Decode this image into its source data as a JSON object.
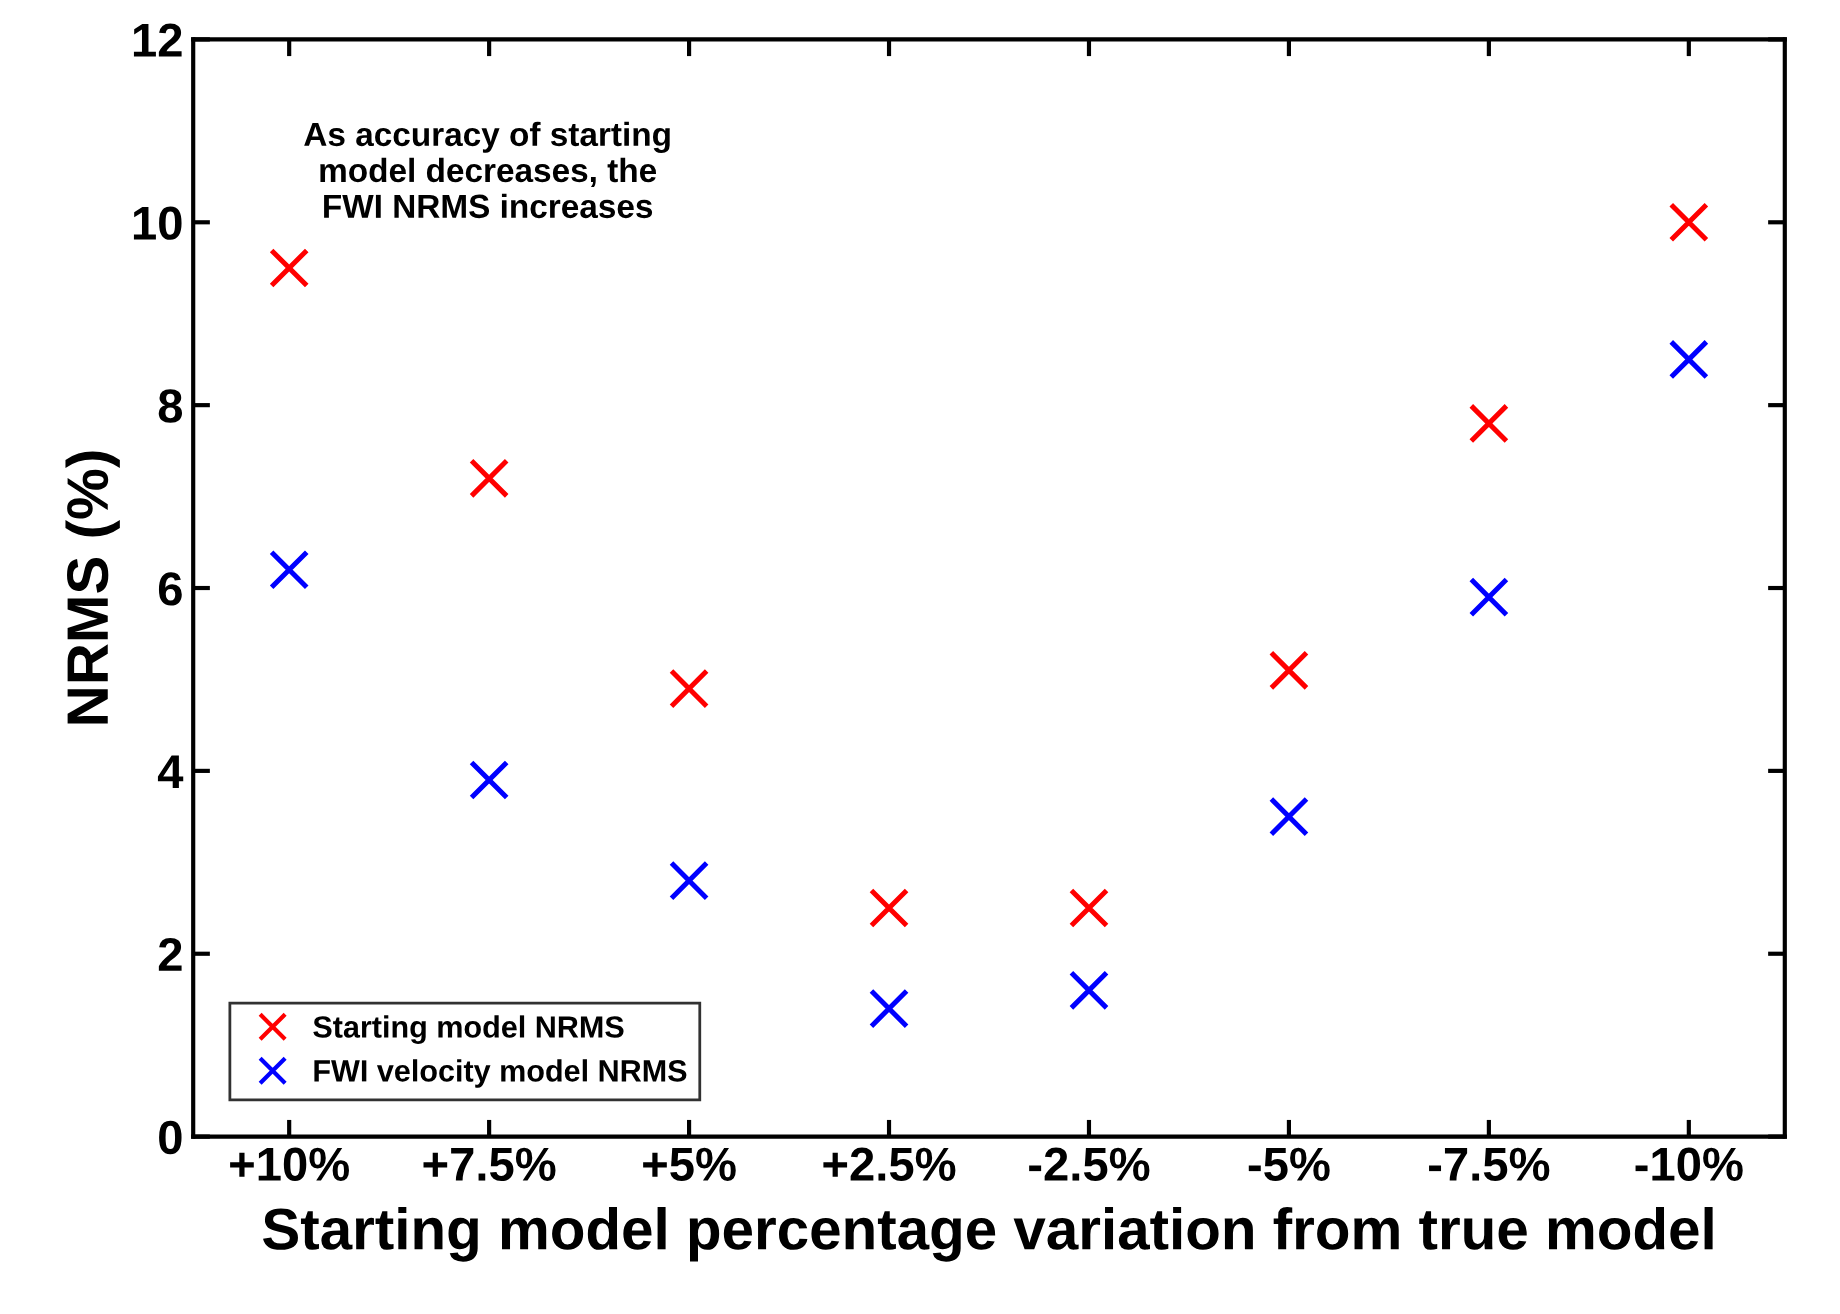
{
  "chart_data": {
    "type": "scatter",
    "xlabel": "Starting model percentage variation from true model",
    "ylabel": "NRMS (%)",
    "categories": [
      "+10%",
      "+7.5%",
      "+5%",
      "+2.5%",
      "-2.5%",
      "-5%",
      "-7.5%",
      "-10%"
    ],
    "series": [
      {
        "name": "Starting model NRMS",
        "color": "#ff0000",
        "values": [
          9.5,
          7.2,
          4.9,
          2.5,
          2.5,
          5.1,
          7.8,
          10.0
        ]
      },
      {
        "name": "FWI velocity model NRMS",
        "color": "#0000ff",
        "values": [
          6.2,
          3.9,
          2.8,
          1.4,
          1.6,
          3.5,
          5.9,
          8.5
        ]
      }
    ],
    "ylim": [
      0,
      12
    ],
    "yticks": [
      0,
      2,
      4,
      6,
      8,
      10,
      12
    ],
    "marker": "cross",
    "legend": "bottom left",
    "grid": false,
    "annotations": [
      "As accuracy of starting\nmodel decreases, the\nFWI NRMS increases"
    ]
  }
}
